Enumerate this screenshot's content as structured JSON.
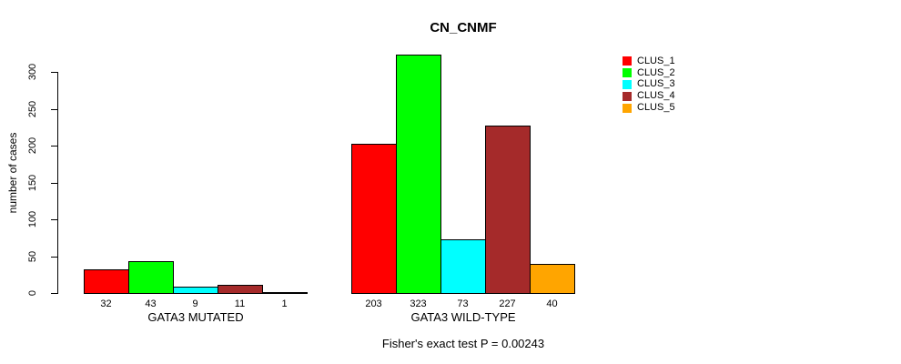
{
  "chart_data": {
    "type": "bar",
    "title": "CN_CNMF",
    "xlabel": "",
    "ylabel": "number of cases",
    "annotation": "Fisher's exact test P = 0.00243",
    "categories": [
      "GATA3 MUTATED",
      "GATA3 WILD-TYPE"
    ],
    "series": [
      {
        "name": "CLUS_1",
        "color": "#ff0000",
        "values": [
          32,
          203
        ]
      },
      {
        "name": "CLUS_2",
        "color": "#00ff00",
        "values": [
          43,
          323
        ]
      },
      {
        "name": "CLUS_3",
        "color": "#00ffff",
        "values": [
          9,
          73
        ]
      },
      {
        "name": "CLUS_4",
        "color": "#a52a2a",
        "values": [
          11,
          227
        ]
      },
      {
        "name": "CLUS_5",
        "color": "#ffa500",
        "values": [
          1,
          40
        ]
      }
    ],
    "bar_value_labels": true,
    "y_ticks": [
      0,
      50,
      100,
      150,
      200,
      250,
      300
    ],
    "ylim": [
      0,
      300
    ],
    "grid": false,
    "legend_position": "top-right",
    "axis_color": "#000000",
    "bar_border_color": "#000000",
    "background_color": "#ffffff"
  }
}
